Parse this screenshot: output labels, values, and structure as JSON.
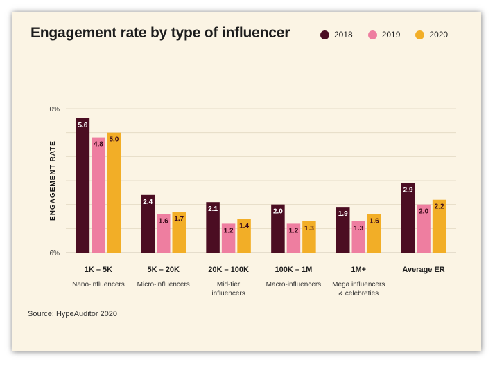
{
  "chart_data": {
    "type": "bar",
    "title": "Engagement rate by type of influencer",
    "ylabel": "ENGAGEMENT RATE",
    "xlabel": "",
    "ylim": [
      0,
      6
    ],
    "yticks": [
      "0%",
      "6%"
    ],
    "grid": true,
    "legend_position": "top-right",
    "categories": [
      "1K – 5K",
      "5K – 20K",
      "20K – 100K",
      "100K – 1M",
      "1M+",
      "Average ER"
    ],
    "sublabels": [
      [
        "Nano-influencers"
      ],
      [
        "Micro-influencers"
      ],
      [
        "Mid-tier",
        "influencers"
      ],
      [
        "Macro-influencers"
      ],
      [
        "Mega influencers",
        "& celebreties"
      ],
      []
    ],
    "series": [
      {
        "name": "2018",
        "color": "#4b0d22",
        "label_color": "#ffffff",
        "values": [
          5.6,
          2.4,
          2.1,
          2.0,
          1.9,
          2.9
        ]
      },
      {
        "name": "2019",
        "color": "#ee7ea0",
        "label_color": "#3a0a1a",
        "values": [
          4.8,
          1.6,
          1.2,
          1.2,
          1.3,
          2.0
        ]
      },
      {
        "name": "2020",
        "color": "#f2ae27",
        "label_color": "#3a0a1a",
        "values": [
          5.0,
          1.7,
          1.4,
          1.3,
          1.6,
          2.2
        ]
      }
    ],
    "source": "Source: HypeAuditor 2020"
  }
}
